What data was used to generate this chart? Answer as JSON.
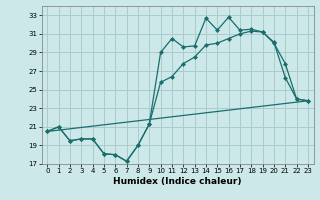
{
  "xlabel": "Humidex (Indice chaleur)",
  "background_color": "#cce8e8",
  "grid_color": "#aacccc",
  "line_color": "#1a6e6e",
  "xlim": [
    -0.5,
    23.5
  ],
  "ylim": [
    17,
    34
  ],
  "yticks": [
    17,
    19,
    21,
    23,
    25,
    27,
    29,
    31,
    33
  ],
  "xticks": [
    0,
    1,
    2,
    3,
    4,
    5,
    6,
    7,
    8,
    9,
    10,
    11,
    12,
    13,
    14,
    15,
    16,
    17,
    18,
    19,
    20,
    21,
    22,
    23
  ],
  "series1_x": [
    0,
    1,
    2,
    3,
    4,
    5,
    6,
    7,
    8,
    9,
    10,
    11,
    12,
    13,
    14,
    15,
    16,
    17,
    18,
    19,
    20,
    21,
    22,
    23
  ],
  "series1_y": [
    20.5,
    21.0,
    19.5,
    19.7,
    19.7,
    18.1,
    18.0,
    17.3,
    19.0,
    21.3,
    29.0,
    30.5,
    29.6,
    29.7,
    32.7,
    31.4,
    32.8,
    31.4,
    31.5,
    31.2,
    30.1,
    26.3,
    24.0,
    23.8
  ],
  "series2_x": [
    0,
    1,
    2,
    3,
    4,
    5,
    6,
    7,
    8,
    9,
    10,
    11,
    12,
    13,
    14,
    15,
    16,
    17,
    18,
    19,
    20,
    21,
    22,
    23
  ],
  "series2_y": [
    20.5,
    21.0,
    19.5,
    19.7,
    19.7,
    18.1,
    18.0,
    17.3,
    19.0,
    21.3,
    25.8,
    26.4,
    27.8,
    28.5,
    29.8,
    30.0,
    30.5,
    31.0,
    31.3,
    31.2,
    30.0,
    27.8,
    24.0,
    23.8
  ],
  "series3_x": [
    0,
    23
  ],
  "series3_y": [
    20.5,
    23.8
  ]
}
